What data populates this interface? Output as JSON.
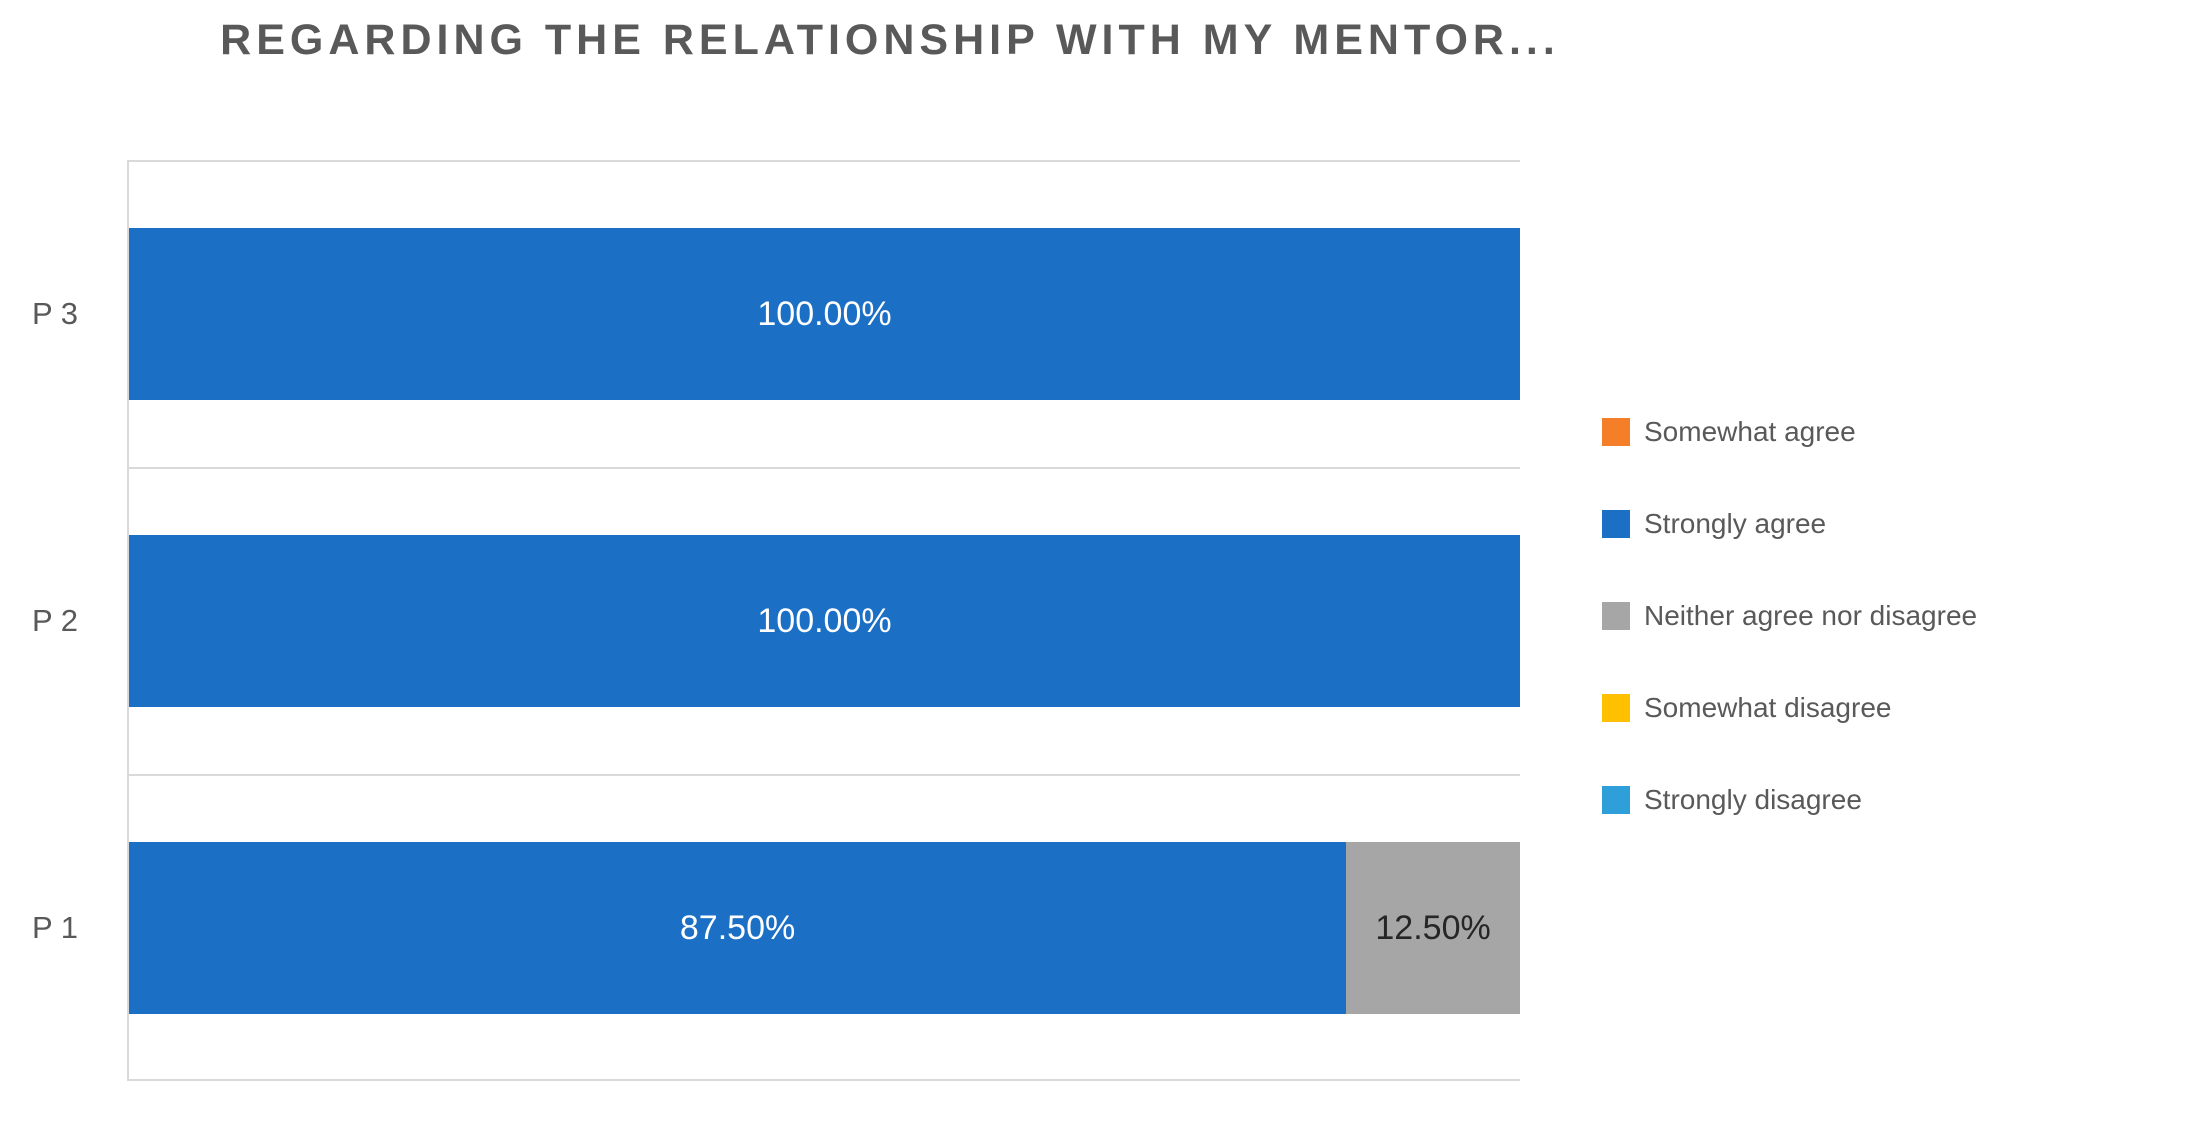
{
  "chart_data": {
    "type": "bar",
    "orientation": "horizontal",
    "stacked": true,
    "title": "REGARDING THE RELATIONSHIP WITH MY MENTOR...",
    "categories": [
      "P 3",
      "P 2",
      "P 1"
    ],
    "series": [
      {
        "name": "Somewhat agree",
        "color": "#F57E28",
        "label_color": "#262626",
        "values": [
          0,
          0,
          0
        ]
      },
      {
        "name": "Strongly agree",
        "color": "#1B70C5",
        "label_color": "#FFFFFF",
        "values": [
          100,
          100,
          87.5
        ]
      },
      {
        "name": "Neither agree nor disagree",
        "color": "#A6A6A6",
        "label_color": "#262626",
        "values": [
          0,
          0,
          12.5
        ]
      },
      {
        "name": "Somewhat disagree",
        "color": "#FFC000",
        "label_color": "#262626",
        "values": [
          0,
          0,
          0
        ]
      },
      {
        "name": "Strongly disagree",
        "color": "#2F9FD9",
        "label_color": "#262626",
        "values": [
          0,
          0,
          0
        ]
      }
    ],
    "data_labels": [
      "100.00%",
      "100.00%",
      "87.50%",
      "12.50%"
    ],
    "value_format": "0.00%",
    "xlim": [
      0,
      100
    ],
    "legend_position": "right",
    "gridlines": "category-separators",
    "gridline_color": "#D9D9D9",
    "title_color": "#595959",
    "axis_text_color": "#595959"
  }
}
